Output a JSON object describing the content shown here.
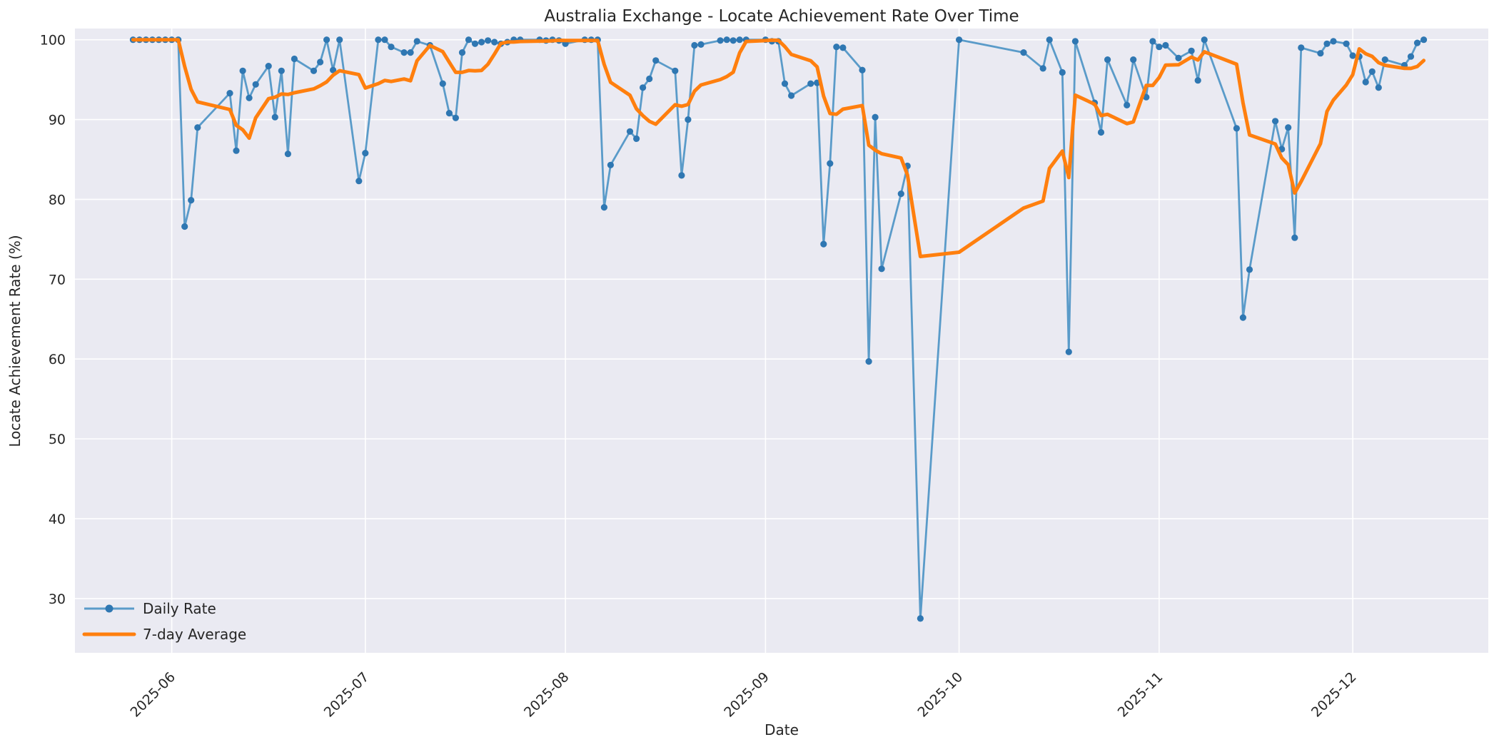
{
  "chart_data": {
    "type": "line",
    "title": "Australia Exchange - Locate Achievement Rate Over Time",
    "xlabel": "Date",
    "ylabel": "Locate Achievement Rate (%)",
    "grid": true,
    "background_color": "#eaeaf2",
    "grid_color": "#ffffff",
    "text_color": "#262626",
    "x_domain": [
      "2025-05-17",
      "2025-12-22"
    ],
    "y_domain": [
      23.2,
      101.4
    ],
    "y_ticks": [
      30,
      40,
      50,
      60,
      70,
      80,
      90,
      100
    ],
    "x_ticks": [
      {
        "date": "2025-06-01",
        "label": "2025-06"
      },
      {
        "date": "2025-07-01",
        "label": "2025-07"
      },
      {
        "date": "2025-08-01",
        "label": "2025-08"
      },
      {
        "date": "2025-09-01",
        "label": "2025-09"
      },
      {
        "date": "2025-10-01",
        "label": "2025-10"
      },
      {
        "date": "2025-11-01",
        "label": "2025-11"
      },
      {
        "date": "2025-12-01",
        "label": "2025-12"
      }
    ],
    "legend": {
      "position": "lower left",
      "items": [
        {
          "label": "Daily Rate",
          "color": "#5a9bc9",
          "marker_color": "#2f77b2",
          "line_width": 3,
          "has_marker": true
        },
        {
          "label": "7-day Average",
          "color": "#ff7f0e",
          "line_width": 5,
          "has_marker": false
        }
      ]
    },
    "series": [
      {
        "name": "Daily Rate",
        "style": "line+markers",
        "color": "#5a9bc9",
        "marker_color": "#2f77b2",
        "dates": [
          "2025-05-26",
          "2025-05-27",
          "2025-05-28",
          "2025-05-29",
          "2025-05-30",
          "2025-05-31",
          "2025-06-01",
          "2025-06-02",
          "2025-06-03",
          "2025-06-04",
          "2025-06-05",
          "2025-06-10",
          "2025-06-11",
          "2025-06-12",
          "2025-06-13",
          "2025-06-14",
          "2025-06-16",
          "2025-06-17",
          "2025-06-18",
          "2025-06-19",
          "2025-06-20",
          "2025-06-23",
          "2025-06-24",
          "2025-06-25",
          "2025-06-26",
          "2025-06-27",
          "2025-06-30",
          "2025-07-01",
          "2025-07-03",
          "2025-07-04",
          "2025-07-05",
          "2025-07-07",
          "2025-07-08",
          "2025-07-09",
          "2025-07-11",
          "2025-07-13",
          "2025-07-14",
          "2025-07-15",
          "2025-07-16",
          "2025-07-17",
          "2025-07-18",
          "2025-07-19",
          "2025-07-20",
          "2025-07-21",
          "2025-07-22",
          "2025-07-23",
          "2025-07-24",
          "2025-07-25",
          "2025-07-28",
          "2025-07-29",
          "2025-07-30",
          "2025-07-31",
          "2025-08-01",
          "2025-08-04",
          "2025-08-05",
          "2025-08-06",
          "2025-08-07",
          "2025-08-08",
          "2025-08-11",
          "2025-08-12",
          "2025-08-13",
          "2025-08-14",
          "2025-08-15",
          "2025-08-18",
          "2025-08-19",
          "2025-08-20",
          "2025-08-21",
          "2025-08-22",
          "2025-08-25",
          "2025-08-26",
          "2025-08-27",
          "2025-08-28",
          "2025-08-29",
          "2025-09-01",
          "2025-09-02",
          "2025-09-03",
          "2025-09-04",
          "2025-09-05",
          "2025-09-08",
          "2025-09-09",
          "2025-09-10",
          "2025-09-11",
          "2025-09-12",
          "2025-09-13",
          "2025-09-16",
          "2025-09-17",
          "2025-09-18",
          "2025-09-19",
          "2025-09-22",
          "2025-09-23",
          "2025-09-25",
          "2025-10-01",
          "2025-10-11",
          "2025-10-14",
          "2025-10-15",
          "2025-10-17",
          "2025-10-18",
          "2025-10-19",
          "2025-10-22",
          "2025-10-23",
          "2025-10-24",
          "2025-10-27",
          "2025-10-28",
          "2025-10-30",
          "2025-10-31",
          "2025-11-01",
          "2025-11-02",
          "2025-11-04",
          "2025-11-06",
          "2025-11-07",
          "2025-11-08",
          "2025-11-13",
          "2025-11-14",
          "2025-11-15",
          "2025-11-19",
          "2025-11-20",
          "2025-11-21",
          "2025-11-22",
          "2025-11-23",
          "2025-11-26",
          "2025-11-27",
          "2025-11-28",
          "2025-11-30",
          "2025-12-01",
          "2025-12-02",
          "2025-12-03",
          "2025-12-04",
          "2025-12-05",
          "2025-12-06",
          "2025-12-09",
          "2025-12-10",
          "2025-12-11",
          "2025-12-12"
        ],
        "values": [
          100,
          100,
          100,
          100,
          100,
          100,
          100,
          100,
          76.6,
          79.9,
          89.0,
          93.3,
          86.1,
          96.1,
          92.7,
          94.4,
          96.7,
          90.3,
          96.1,
          85.7,
          97.6,
          96.1,
          97.2,
          100,
          96.2,
          100,
          82.3,
          85.8,
          100,
          100,
          99.1,
          98.4,
          98.4,
          99.8,
          99.3,
          94.5,
          90.8,
          90.2,
          98.4,
          100,
          99.5,
          99.7,
          99.9,
          99.7,
          99.5,
          99.7,
          100,
          100,
          100,
          99.9,
          100,
          99.9,
          99.5,
          100,
          100,
          100,
          79.0,
          84.3,
          88.5,
          87.6,
          94.0,
          95.1,
          97.4,
          96.1,
          83.0,
          90.0,
          99.3,
          99.4,
          99.9,
          100,
          99.9,
          100,
          100,
          100,
          99.8,
          99.8,
          94.5,
          93.0,
          94.5,
          94.6,
          74.4,
          84.5,
          99.1,
          99.0,
          96.2,
          59.7,
          90.3,
          71.3,
          80.7,
          84.2,
          27.5,
          100,
          98.4,
          96.4,
          100,
          95.9,
          60.9,
          99.8,
          92.1,
          88.4,
          97.5,
          91.8,
          97.5,
          92.8,
          99.8,
          99.1,
          99.3,
          97.7,
          98.6,
          94.9,
          100,
          88.9,
          65.2,
          71.2,
          89.8,
          86.3,
          89.0,
          75.2,
          99.0,
          98.3,
          99.5,
          99.8,
          99.5,
          98.0,
          97.9,
          94.7,
          96.0,
          94.0,
          97.5,
          96.8,
          97.9,
          99.6,
          100
        ]
      },
      {
        "name": "7-day Average",
        "style": "line",
        "color": "#ff7f0e",
        "derived": "rolling mean of last 7 Daily Rate observations (min_periods=1)"
      }
    ]
  }
}
